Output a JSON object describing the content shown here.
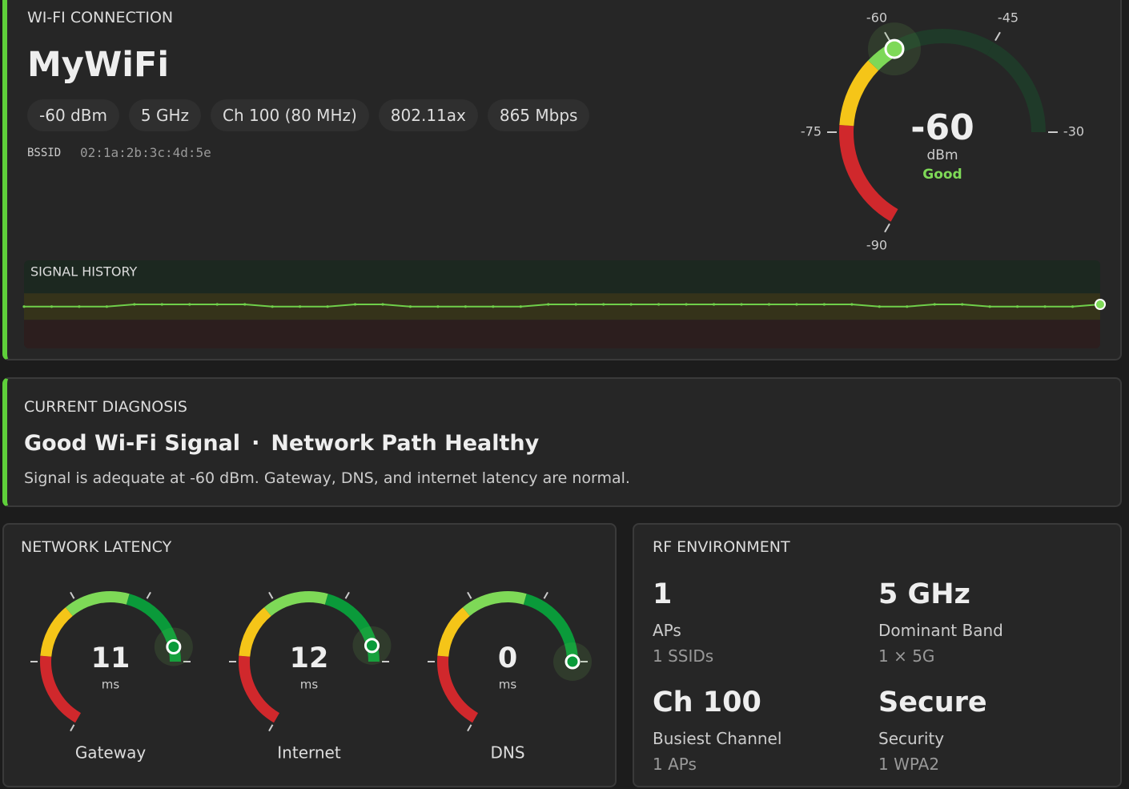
{
  "wifi": {
    "title": "WI-FI CONNECTION",
    "ssid": "MyWiFi",
    "chips": [
      "-60 dBm",
      "5 GHz",
      "Ch 100 (80 MHz)",
      "802.11ax",
      "865 Mbps"
    ],
    "bssid_label": "BSSID",
    "bssid": "02:1a:2b:3c:4d:5e",
    "gauge": {
      "value": -60,
      "unit": "dBm",
      "status": "Good",
      "range": [
        -90,
        -30
      ],
      "ticks": [
        -90,
        -75,
        -60,
        -45,
        -30
      ],
      "track": "#1f3a29",
      "zones": [
        {
          "from": -90,
          "to": -74,
          "color": "#d0282c"
        },
        {
          "from": -74,
          "to": -64,
          "color": "#f5c518"
        },
        {
          "from": -64,
          "to": -45,
          "color": "#7ed957"
        },
        {
          "from": -45,
          "to": -30,
          "color": "#1e8a3a"
        }
      ]
    },
    "history": {
      "title": "SIGNAL HISTORY",
      "ylim": [
        -80,
        -40
      ],
      "color": "#6fcf4a",
      "bands": [
        {
          "from": -55,
          "to": -40,
          "color": "#1c2820"
        },
        {
          "from": -67,
          "to": -55,
          "color": "#35331a"
        },
        {
          "from": -80,
          "to": -67,
          "color": "#2c1e1e"
        }
      ],
      "values": [
        -61,
        -61,
        -61,
        -61,
        -60,
        -60,
        -60,
        -60,
        -60,
        -61,
        -61,
        -61,
        -60,
        -60,
        -61,
        -61,
        -61,
        -61,
        -61,
        -60,
        -60,
        -60,
        -60,
        -60,
        -60,
        -60,
        -60,
        -60,
        -60,
        -60,
        -60,
        -61,
        -61,
        -60,
        -60,
        -61,
        -61,
        -61,
        -61,
        -60
      ]
    }
  },
  "diagnosis": {
    "title": "CURRENT DIAGNOSIS",
    "headline": [
      "Good Wi-Fi Signal",
      "·",
      "Network Path Healthy"
    ],
    "description": "Signal is adequate at -60 dBm. Gateway, DNS, and internet latency are normal."
  },
  "latency": {
    "title": "NETWORK LATENCY",
    "range": [
      200,
      0
    ],
    "ticks": [
      200,
      150,
      100,
      50,
      0
    ],
    "zones": [
      {
        "from": 200,
        "to": 146,
        "color": "#d0282c"
      },
      {
        "from": 146,
        "to": 108,
        "color": "#f5c518"
      },
      {
        "from": 108,
        "to": 62,
        "color": "#7ed957"
      },
      {
        "from": 62,
        "to": 0,
        "color": "#0a9a3a"
      }
    ],
    "gauges": [
      {
        "name": "Gateway",
        "value": 11,
        "unit": "ms"
      },
      {
        "name": "Internet",
        "value": 12,
        "unit": "ms"
      },
      {
        "name": "DNS",
        "value": 0,
        "unit": "ms"
      }
    ]
  },
  "rf": {
    "title": "RF ENVIRONMENT",
    "items": [
      {
        "value": 1,
        "label": "APs",
        "sub": "1 SSIDs"
      },
      {
        "value": "5 GHz",
        "label": "Dominant Band",
        "sub": "1 × 5G"
      },
      {
        "value": "Ch 100",
        "label": "Busiest Channel",
        "sub": "1 APs"
      },
      {
        "value": "Secure",
        "label": "Security",
        "sub": "1 WPA2"
      }
    ]
  }
}
